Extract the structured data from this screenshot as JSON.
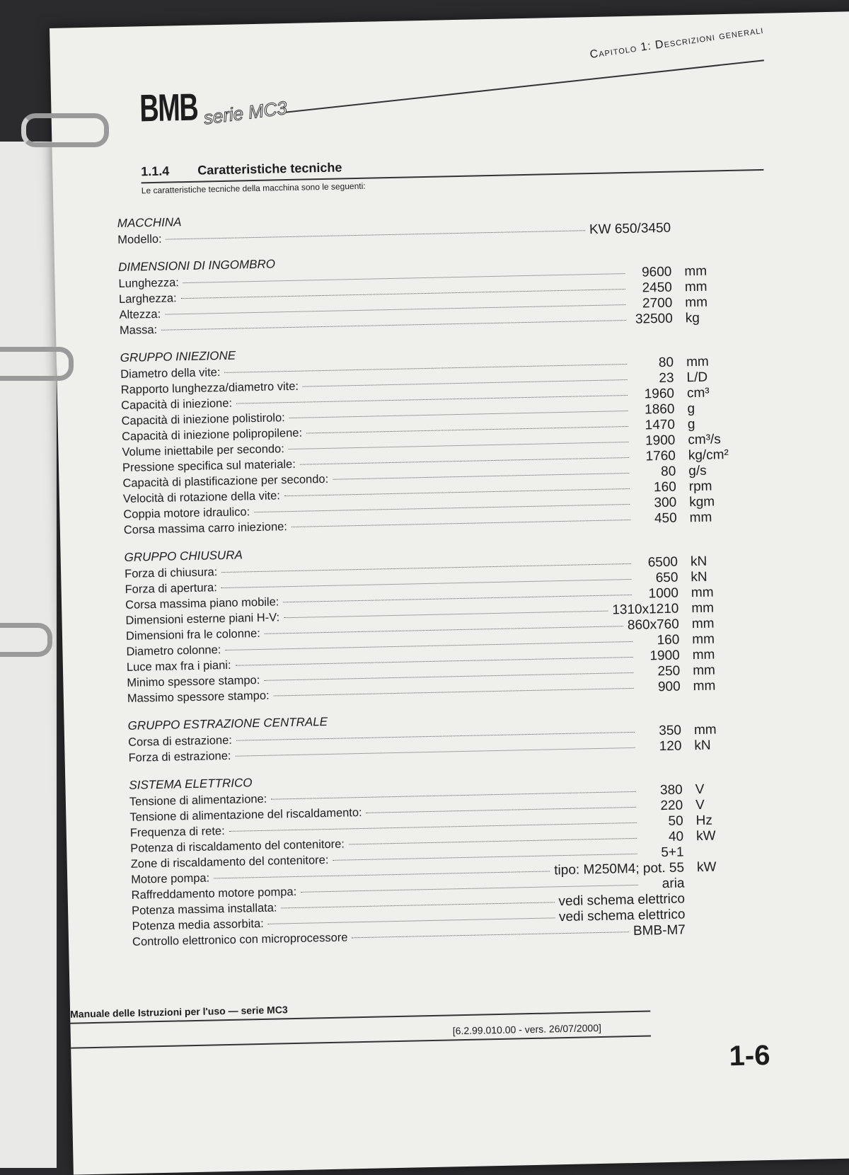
{
  "header": {
    "chapter": "Capitolo 1: Descrizioni generali",
    "logo": "BMB",
    "series_logo": "serie MC3"
  },
  "section": {
    "number": "1.1.4",
    "title": "Caratteristiche tecniche",
    "intro": "Le caratteristiche tecniche della macchina sono le seguenti:"
  },
  "groups": [
    {
      "title": "MACCHINA",
      "rows": [
        {
          "label": "Modello:",
          "value": "KW 650/3450",
          "unit": ""
        }
      ]
    },
    {
      "title": "DIMENSIONI DI INGOMBRO",
      "rows": [
        {
          "label": "Lunghezza:",
          "value": "9600",
          "unit": "mm"
        },
        {
          "label": "Larghezza:",
          "value": "2450",
          "unit": "mm"
        },
        {
          "label": "Altezza:",
          "value": "2700",
          "unit": "mm"
        },
        {
          "label": "Massa:",
          "value": "32500",
          "unit": "kg"
        }
      ]
    },
    {
      "title": "GRUPPO INIEZIONE",
      "rows": [
        {
          "label": "Diametro della vite:",
          "value": "80",
          "unit": "mm"
        },
        {
          "label": "Rapporto lunghezza/diametro vite:",
          "value": "23",
          "unit": "L/D"
        },
        {
          "label": "Capacità di iniezione:",
          "value": "1960",
          "unit": "cm³"
        },
        {
          "label": "Capacità di iniezione polistirolo:",
          "value": "1860",
          "unit": "g"
        },
        {
          "label": "Capacità di iniezione polipropilene:",
          "value": "1470",
          "unit": "g"
        },
        {
          "label": "Volume iniettabile per secondo:",
          "value": "1900",
          "unit": "cm³/s"
        },
        {
          "label": "Pressione specifica sul materiale:",
          "value": "1760",
          "unit": "kg/cm²"
        },
        {
          "label": "Capacità di plastificazione per secondo:",
          "value": "80",
          "unit": "g/s"
        },
        {
          "label": "Velocità di rotazione della vite:",
          "value": "160",
          "unit": "rpm"
        },
        {
          "label": "Coppia motore idraulico:",
          "value": "300",
          "unit": "kgm"
        },
        {
          "label": "Corsa massima carro iniezione:",
          "value": "450",
          "unit": "mm"
        }
      ]
    },
    {
      "title": "GRUPPO CHIUSURA",
      "rows": [
        {
          "label": "Forza di chiusura:",
          "value": "6500",
          "unit": "kN"
        },
        {
          "label": "Forza di apertura:",
          "value": "650",
          "unit": "kN"
        },
        {
          "label": "Corsa massima piano mobile:",
          "value": "1000",
          "unit": "mm"
        },
        {
          "label": "Dimensioni esterne piani H-V:",
          "value": "1310x1210",
          "unit": "mm"
        },
        {
          "label": "Dimensioni fra le colonne:",
          "value": "860x760",
          "unit": "mm"
        },
        {
          "label": "Diametro colonne:",
          "value": "160",
          "unit": "mm"
        },
        {
          "label": "Luce max fra i piani:",
          "value": "1900",
          "unit": "mm"
        },
        {
          "label": "Minimo spessore stampo:",
          "value": "250",
          "unit": "mm"
        },
        {
          "label": "Massimo spessore stampo:",
          "value": "900",
          "unit": "mm"
        }
      ]
    },
    {
      "title": "GRUPPO ESTRAZIONE CENTRALE",
      "rows": [
        {
          "label": "Corsa di estrazione:",
          "value": "350",
          "unit": "mm"
        },
        {
          "label": "Forza di estrazione:",
          "value": "120",
          "unit": "kN"
        }
      ]
    },
    {
      "title": "SISTEMA ELETTRICO",
      "rows": [
        {
          "label": "Tensione di alimentazione:",
          "value": "380",
          "unit": "V"
        },
        {
          "label": "Tensione di alimentazione del riscaldamento:",
          "value": "220",
          "unit": "V"
        },
        {
          "label": "Frequenza di rete:",
          "value": "50",
          "unit": "Hz"
        },
        {
          "label": "Potenza di riscaldamento del contenitore:",
          "value": "40",
          "unit": "kW"
        },
        {
          "label": "Zone di riscaldamento del contenitore:",
          "value": "5+1",
          "unit": ""
        },
        {
          "label": "Motore pompa:",
          "value": "tipo: M250M4; pot. 55",
          "unit": "kW"
        },
        {
          "label": "Raffreddamento motore pompa:",
          "value": "aria",
          "unit": ""
        },
        {
          "label": "Potenza massima installata:",
          "value": "vedi schema elettrico",
          "unit": ""
        },
        {
          "label": "Potenza media assorbita:",
          "value": "vedi schema elettrico",
          "unit": ""
        },
        {
          "label": "Controllo elettronico con microprocessore",
          "value": "BMB-M7",
          "unit": ""
        }
      ]
    }
  ],
  "footer": {
    "manual": "Manuale delle Istruzioni per l'uso — serie MC3",
    "version": "[6.2.99.010.00 - vers. 26/07/2000]",
    "page": "1-6"
  }
}
